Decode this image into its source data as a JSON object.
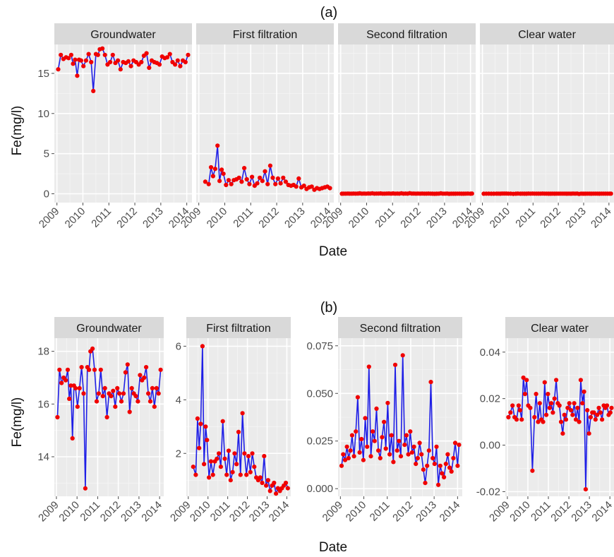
{
  "chart_data": {
    "type": "line",
    "x_label": "Date",
    "y_label": "Fe(mg/l)",
    "colors": {
      "line": "#1f1fe6",
      "point": "#f00000",
      "panel_bg": "#ebebeb",
      "strip_bg": "#d9d9d9",
      "grid_major": "#ffffff"
    },
    "facets": [
      "Groundwater",
      "First filtration",
      "Second filtration",
      "Clear water"
    ],
    "x_ticks": [
      2009,
      2010,
      2011,
      2012,
      2013,
      2014
    ],
    "panels": [
      {
        "label": "(a)",
        "scales": "fixed",
        "xlim": [
          2008.9,
          2014.2
        ],
        "ylim": [
          -1.1,
          18.6
        ],
        "y_ticks": [
          0,
          5,
          10,
          15
        ],
        "y_tick_labels": [
          "0",
          "5",
          "10",
          "15"
        ],
        "series": [
          {
            "facet": "Groundwater",
            "x": [
              2009.05,
              2009.15,
              2009.25,
              2009.35,
              2009.45,
              2009.55,
              2009.62,
              2009.7,
              2009.78,
              2009.85,
              2009.93,
              2010.02,
              2010.12,
              2010.22,
              2010.32,
              2010.4,
              2010.5,
              2010.58,
              2010.65,
              2010.75,
              2010.85,
              2010.95,
              2011.05,
              2011.15,
              2011.25,
              2011.35,
              2011.45,
              2011.55,
              2011.65,
              2011.75,
              2011.85,
              2011.95,
              2012.05,
              2012.15,
              2012.25,
              2012.35,
              2012.45,
              2012.55,
              2012.65,
              2012.75,
              2012.85,
              2012.95,
              2013.05,
              2013.15,
              2013.25,
              2013.35,
              2013.45,
              2013.55,
              2013.65,
              2013.75,
              2013.85,
              2013.95,
              2014.05
            ],
            "y": [
              15.5,
              17.3,
              16.8,
              17.0,
              16.9,
              17.3,
              16.2,
              16.7,
              14.7,
              16.7,
              16.6,
              15.9,
              16.6,
              17.4,
              16.4,
              12.8,
              17.4,
              17.3,
              18.0,
              18.1,
              17.3,
              16.1,
              16.4,
              17.3,
              16.3,
              16.6,
              15.5,
              16.4,
              16.3,
              16.5,
              15.9,
              16.6,
              16.4,
              16.1,
              16.4,
              17.2,
              17.5,
              15.7,
              16.6,
              16.4,
              16.3,
              16.1,
              17.1,
              16.9,
              17.0,
              17.4,
              16.4,
              16.1,
              16.6,
              15.9,
              16.6,
              16.4,
              17.3
            ]
          },
          {
            "facet": "First filtration",
            "x": [
              2009.25,
              2009.38,
              2009.47,
              2009.55,
              2009.63,
              2009.72,
              2009.8,
              2009.88,
              2009.95,
              2010.05,
              2010.15,
              2010.25,
              2010.35,
              2010.45,
              2010.55,
              2010.65,
              2010.75,
              2010.85,
              2010.95,
              2011.05,
              2011.15,
              2011.25,
              2011.35,
              2011.45,
              2011.55,
              2011.65,
              2011.75,
              2011.85,
              2011.95,
              2012.05,
              2012.15,
              2012.25,
              2012.35,
              2012.45,
              2012.55,
              2012.65,
              2012.75,
              2012.85,
              2012.95,
              2013.05,
              2013.15,
              2013.25,
              2013.35,
              2013.45,
              2013.55,
              2013.65,
              2013.75,
              2013.85,
              2013.95,
              2014.05
            ],
            "y": [
              1.5,
              1.2,
              3.3,
              2.2,
              3.1,
              6.0,
              1.6,
              3.0,
              2.5,
              1.1,
              1.7,
              1.2,
              1.7,
              1.8,
              2.0,
              1.5,
              3.2,
              1.8,
              1.2,
              2.1,
              1.0,
              1.3,
              2.0,
              1.6,
              2.8,
              1.2,
              3.5,
              2.0,
              1.2,
              1.9,
              1.3,
              2.0,
              1.5,
              1.1,
              1.0,
              1.1,
              0.9,
              1.9,
              0.8,
              1.0,
              0.6,
              0.8,
              0.9,
              0.5,
              0.7,
              0.6,
              0.7,
              0.8,
              0.9,
              0.7
            ]
          },
          {
            "facet": "Second filtration",
            "x": [
              2009.05,
              2009.12,
              2009.2,
              2009.28,
              2009.35,
              2009.43,
              2009.5,
              2009.58,
              2009.66,
              2009.74,
              2009.82,
              2009.9,
              2009.98,
              2010.06,
              2010.14,
              2010.22,
              2010.3,
              2010.38,
              2010.46,
              2010.54,
              2010.62,
              2010.7,
              2010.78,
              2010.86,
              2010.94,
              2011.02,
              2011.1,
              2011.18,
              2011.26,
              2011.34,
              2011.42,
              2011.5,
              2011.58,
              2011.66,
              2011.74,
              2011.82,
              2011.9,
              2011.98,
              2012.06,
              2012.14,
              2012.22,
              2012.3,
              2012.38,
              2012.46,
              2012.54,
              2012.62,
              2012.7,
              2012.78,
              2012.86,
              2012.94,
              2013.02,
              2013.1,
              2013.18,
              2013.26,
              2013.34,
              2013.42,
              2013.5,
              2013.58,
              2013.66,
              2013.74,
              2013.82,
              2013.9,
              2014.0,
              2014.06
            ],
            "y": [
              0.012,
              0.018,
              0.015,
              0.022,
              0.016,
              0.02,
              0.028,
              0.017,
              0.03,
              0.048,
              0.019,
              0.026,
              0.015,
              0.037,
              0.022,
              0.064,
              0.017,
              0.03,
              0.025,
              0.042,
              0.02,
              0.016,
              0.027,
              0.035,
              0.021,
              0.045,
              0.018,
              0.028,
              0.014,
              0.065,
              0.02,
              0.025,
              0.017,
              0.07,
              0.023,
              0.028,
              0.018,
              0.03,
              0.019,
              0.022,
              0.013,
              0.016,
              0.024,
              0.018,
              0.01,
              0.003,
              0.012,
              0.02,
              0.056,
              0.016,
              0.013,
              0.022,
              0.002,
              0.012,
              0.008,
              0.006,
              0.013,
              0.018,
              0.011,
              0.009,
              0.016,
              0.024,
              0.012,
              0.023
            ]
          },
          {
            "facet": "Clear water",
            "x": [
              2009.05,
              2009.15,
              2009.25,
              2009.35,
              2009.45,
              2009.55,
              2009.62,
              2009.7,
              2009.78,
              2009.86,
              2009.94,
              2010.02,
              2010.12,
              2010.22,
              2010.32,
              2010.4,
              2010.5,
              2010.58,
              2010.66,
              2010.74,
              2010.82,
              2010.9,
              2010.98,
              2011.06,
              2011.14,
              2011.22,
              2011.3,
              2011.38,
              2011.46,
              2011.54,
              2011.62,
              2011.7,
              2011.78,
              2011.86,
              2011.94,
              2012.02,
              2012.1,
              2012.18,
              2012.26,
              2012.34,
              2012.42,
              2012.5,
              2012.58,
              2012.66,
              2012.74,
              2012.82,
              2012.9,
              2012.98,
              2013.06,
              2013.14,
              2013.22,
              2013.3,
              2013.38,
              2013.46,
              2013.54,
              2013.62,
              2013.7,
              2013.78,
              2013.86,
              2013.94,
              2014.02,
              2014.08
            ],
            "y": [
              0.012,
              0.014,
              0.017,
              0.012,
              0.011,
              0.017,
              0.015,
              0.011,
              0.029,
              0.022,
              0.028,
              0.017,
              0.016,
              -0.011,
              0.012,
              0.022,
              0.01,
              0.018,
              0.011,
              0.01,
              0.027,
              0.013,
              0.022,
              0.016,
              0.018,
              0.014,
              0.02,
              0.028,
              0.018,
              0.017,
              0.01,
              0.005,
              0.013,
              0.011,
              0.016,
              0.018,
              0.015,
              0.013,
              0.018,
              0.011,
              0.016,
              0.01,
              0.028,
              0.018,
              0.023,
              -0.019,
              0.015,
              0.005,
              0.012,
              0.014,
              0.014,
              0.011,
              0.013,
              0.016,
              0.014,
              0.011,
              0.017,
              0.016,
              0.017,
              0.013,
              0.014,
              0.016
            ]
          }
        ]
      },
      {
        "label": "(b)",
        "scales": "free_y",
        "xlim": [
          2008.9,
          2014.2
        ],
        "facet_ylims": [
          [
            12.5,
            18.5
          ],
          [
            0.4,
            6.3
          ],
          [
            -0.004,
            0.079
          ],
          [
            -0.022,
            0.046
          ]
        ],
        "facet_y_ticks": [
          [
            14,
            16,
            18
          ],
          [
            2,
            4,
            6
          ],
          [
            0.0,
            0.025,
            0.05,
            0.075
          ],
          [
            -0.02,
            0.0,
            0.02,
            0.04
          ]
        ],
        "facet_y_tick_labels": [
          [
            "14",
            "16",
            "18"
          ],
          [
            "2",
            "4",
            "6"
          ],
          [
            "0.000",
            "0.025",
            "0.050",
            "0.075"
          ],
          [
            "-0.02",
            "0.00",
            "0.02",
            "0.04"
          ]
        ]
      }
    ]
  }
}
